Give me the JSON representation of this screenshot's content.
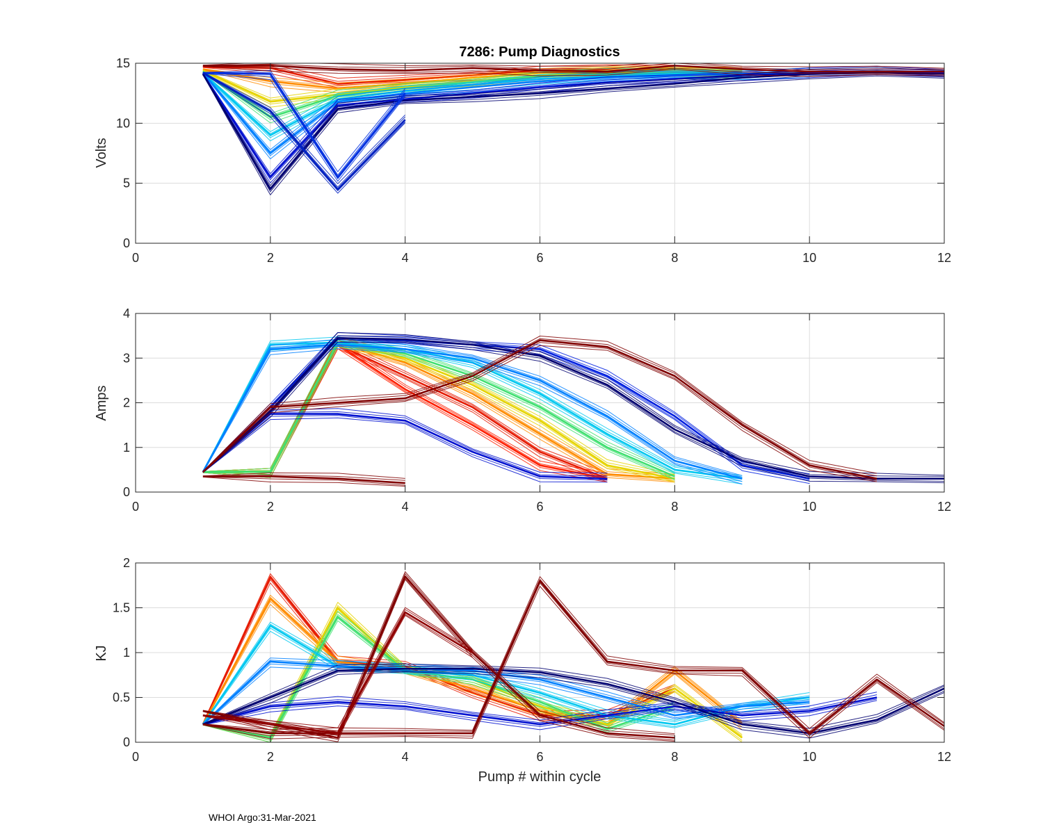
{
  "footer": "WHOI Argo:31-Mar-2021",
  "chart_data": [
    {
      "type": "line",
      "title": "7286: Pump Diagnostics",
      "xlabel": "",
      "ylabel": "Volts",
      "xlim": [
        0,
        12
      ],
      "ylim": [
        0,
        15
      ],
      "xticks": [
        0,
        2,
        4,
        6,
        8,
        10,
        12
      ],
      "yticks": [
        0,
        5,
        10,
        15
      ],
      "grid": true,
      "colormap": "jet, cycle-ordered: dark red (earliest) to dark blue (latest)",
      "series": [
        {
          "name": "early cycles",
          "color": "#e61a00",
          "x": [
            1,
            2,
            3,
            4,
            5,
            6,
            7,
            8
          ],
          "y": [
            14.7,
            14.6,
            13.3,
            13.6,
            14.0,
            14.4,
            14.4,
            14.5
          ]
        },
        {
          "name": "orange cycles",
          "color": "#ff8c00",
          "x": [
            1,
            2,
            3,
            4,
            5,
            6,
            7,
            8,
            9
          ],
          "y": [
            14.5,
            13.5,
            12.9,
            13.3,
            13.8,
            14.2,
            14.3,
            14.4,
            14.4
          ]
        },
        {
          "name": "yellow cycles",
          "color": "#e6d400",
          "x": [
            1,
            2,
            3,
            4,
            5,
            6,
            7,
            8,
            9
          ],
          "y": [
            14.4,
            11.8,
            12.4,
            13.0,
            13.5,
            14.0,
            14.2,
            14.3,
            14.3
          ]
        },
        {
          "name": "green cycles",
          "color": "#40e070",
          "x": [
            1,
            2,
            3,
            4,
            5,
            6,
            7,
            8,
            9
          ],
          "y": [
            14.3,
            10.5,
            12.3,
            12.9,
            13.4,
            13.9,
            14.1,
            14.2,
            14.2
          ]
        },
        {
          "name": "cyan cycles",
          "color": "#00c8f0",
          "x": [
            1,
            2,
            3,
            4,
            5,
            6,
            7,
            8,
            9,
            10
          ],
          "y": [
            14.2,
            9.0,
            12.0,
            12.7,
            13.2,
            13.7,
            13.9,
            14.1,
            14.1,
            14.2
          ]
        },
        {
          "name": "light blue cycles",
          "color": "#0080ff",
          "x": [
            1,
            2,
            3,
            4,
            5,
            6,
            7,
            8,
            9,
            10
          ],
          "y": [
            14.2,
            7.5,
            11.8,
            12.5,
            13.0,
            13.5,
            13.8,
            14.0,
            14.1,
            14.2
          ]
        },
        {
          "name": "blue cycles",
          "color": "#0010d0",
          "x": [
            1,
            2,
            3,
            4,
            5,
            6,
            7,
            8,
            9,
            10,
            11,
            12
          ],
          "y": [
            14.1,
            5.5,
            11.5,
            12.0,
            12.5,
            13.0,
            13.4,
            13.7,
            14.0,
            14.2,
            14.3,
            14.2
          ]
        },
        {
          "name": "navy cycles (latest)",
          "color": "#000070",
          "x": [
            1,
            2,
            3,
            4,
            5,
            6,
            7,
            8,
            9,
            10,
            11,
            12
          ],
          "y": [
            14.1,
            4.5,
            11.2,
            11.9,
            12.2,
            12.5,
            12.9,
            13.3,
            13.8,
            14.1,
            14.2,
            14.1
          ]
        },
        {
          "name": "dip at pump 3",
          "color": "#0030e0",
          "x": [
            1,
            2,
            3,
            4
          ],
          "y": [
            14.2,
            14.1,
            5.5,
            12.5
          ]
        },
        {
          "name": "dip at pump 3 (deep)",
          "color": "#0020c0",
          "x": [
            1,
            2,
            3,
            4
          ],
          "y": [
            14.2,
            11.0,
            4.5,
            10.3
          ]
        },
        {
          "name": "dark red outlier",
          "color": "#800000",
          "x": [
            1,
            2,
            3,
            4,
            5,
            6,
            7,
            8,
            9,
            10,
            11,
            12
          ],
          "y": [
            14.8,
            14.8,
            14.5,
            14.4,
            14.6,
            14.4,
            14.3,
            14.8,
            14.5,
            14.3,
            14.3,
            14.3
          ]
        }
      ]
    },
    {
      "type": "line",
      "title": "",
      "xlabel": "",
      "ylabel": "Amps",
      "xlim": [
        0,
        12
      ],
      "ylim": [
        0,
        4
      ],
      "xticks": [
        0,
        2,
        4,
        6,
        8,
        10,
        12
      ],
      "yticks": [
        0,
        1,
        2,
        3,
        4
      ],
      "grid": true,
      "series": [
        {
          "name": "red cycles",
          "color": "#e61a00",
          "x": [
            1,
            2,
            3,
            4,
            5,
            6,
            7
          ],
          "y": [
            0.45,
            0.45,
            3.3,
            2.6,
            1.9,
            0.9,
            0.3
          ]
        },
        {
          "name": "red cycles (steep)",
          "color": "#ff2000",
          "x": [
            1,
            2,
            3,
            4,
            5,
            6,
            7
          ],
          "y": [
            0.45,
            0.45,
            3.3,
            2.3,
            1.5,
            0.6,
            0.3
          ]
        },
        {
          "name": "orange cycles",
          "color": "#ff8c00",
          "x": [
            1,
            2,
            3,
            4,
            5,
            6,
            7,
            8
          ],
          "y": [
            0.45,
            0.45,
            3.35,
            2.9,
            2.2,
            1.3,
            0.4,
            0.3
          ]
        },
        {
          "name": "yellow cycles",
          "color": "#e6d400",
          "x": [
            1,
            2,
            3,
            4,
            5,
            6,
            7,
            8
          ],
          "y": [
            0.45,
            0.45,
            3.35,
            3.0,
            2.4,
            1.6,
            0.6,
            0.3
          ]
        },
        {
          "name": "green cycles",
          "color": "#40e070",
          "x": [
            1,
            2,
            3,
            4,
            5,
            6,
            7,
            8
          ],
          "y": [
            0.45,
            0.45,
            3.35,
            3.1,
            2.6,
            1.9,
            1.0,
            0.35
          ]
        },
        {
          "name": "cyan cycles",
          "color": "#00c8f0",
          "x": [
            1,
            2,
            3,
            4,
            5,
            6,
            7,
            8,
            9
          ],
          "y": [
            0.45,
            3.3,
            3.35,
            3.2,
            2.9,
            2.2,
            1.3,
            0.5,
            0.3
          ]
        },
        {
          "name": "light blue cycles",
          "color": "#0080ff",
          "x": [
            1,
            2,
            3,
            4,
            5,
            6,
            7,
            8,
            9
          ],
          "y": [
            0.45,
            3.2,
            3.3,
            3.2,
            3.0,
            2.5,
            1.7,
            0.7,
            0.3
          ]
        },
        {
          "name": "blue plateau cycles",
          "color": "#0010d0",
          "x": [
            1,
            2,
            3,
            4,
            5,
            6,
            7
          ],
          "y": [
            0.45,
            1.75,
            1.75,
            1.6,
            0.9,
            0.35,
            0.3
          ]
        },
        {
          "name": "blue long cycles",
          "color": "#0020e0",
          "x": [
            1,
            2,
            3,
            4,
            5,
            6,
            7,
            8,
            9,
            10
          ],
          "y": [
            0.45,
            1.9,
            3.45,
            3.4,
            3.3,
            3.2,
            2.6,
            1.7,
            0.6,
            0.3
          ]
        },
        {
          "name": "navy cycles (latest)",
          "color": "#000070",
          "x": [
            1,
            2,
            3,
            4,
            5,
            6,
            7,
            8,
            9,
            10,
            11,
            12
          ],
          "y": [
            0.45,
            1.8,
            3.45,
            3.42,
            3.3,
            3.05,
            2.4,
            1.4,
            0.7,
            0.35,
            0.3,
            0.3
          ]
        },
        {
          "name": "dark red outlier A",
          "color": "#800000",
          "x": [
            1,
            2,
            3,
            4
          ],
          "y": [
            0.35,
            0.35,
            0.3,
            0.2
          ]
        },
        {
          "name": "dark red outlier B",
          "color": "#800000",
          "x": [
            1,
            2,
            3,
            4,
            5,
            6,
            7,
            8,
            9,
            10,
            11
          ],
          "y": [
            0.45,
            1.9,
            2.0,
            2.1,
            2.6,
            3.4,
            3.25,
            2.6,
            1.5,
            0.6,
            0.3
          ]
        }
      ]
    },
    {
      "type": "line",
      "title": "",
      "xlabel": "Pump # within cycle",
      "ylabel": "KJ",
      "xlim": [
        0,
        12
      ],
      "ylim": [
        0,
        2
      ],
      "xticks": [
        0,
        2,
        4,
        6,
        8,
        10,
        12
      ],
      "yticks": [
        0,
        0.5,
        1,
        1.5,
        2
      ],
      "yticklabels": [
        "0",
        "0.5",
        "1",
        "1.5",
        "2"
      ],
      "grid": true,
      "series": [
        {
          "name": "red cycles",
          "color": "#e61a00",
          "x": [
            1,
            2,
            3,
            4,
            5,
            6,
            7,
            8
          ],
          "y": [
            0.2,
            1.84,
            0.9,
            0.85,
            0.55,
            0.3,
            0.3,
            0.6
          ]
        },
        {
          "name": "orange cycles",
          "color": "#ff8c00",
          "x": [
            1,
            2,
            3,
            4,
            5,
            6,
            7,
            8,
            9
          ],
          "y": [
            0.2,
            1.6,
            0.9,
            0.8,
            0.6,
            0.35,
            0.2,
            0.8,
            0.2
          ]
        },
        {
          "name": "yellow cycles",
          "color": "#e6d400",
          "x": [
            1,
            2,
            3,
            4,
            5,
            6,
            7,
            8,
            9
          ],
          "y": [
            0.2,
            0.05,
            1.5,
            0.8,
            0.7,
            0.4,
            0.2,
            0.6,
            0.05
          ]
        },
        {
          "name": "green cycles",
          "color": "#40e070",
          "x": [
            1,
            2,
            3,
            4,
            5,
            6,
            7,
            8
          ],
          "y": [
            0.2,
            0.05,
            1.4,
            0.8,
            0.7,
            0.45,
            0.15,
            0.4
          ]
        },
        {
          "name": "cyan cycles",
          "color": "#00c8f0",
          "x": [
            1,
            2,
            3,
            4,
            5,
            6,
            7,
            8,
            9,
            10
          ],
          "y": [
            0.2,
            1.3,
            0.85,
            0.8,
            0.75,
            0.55,
            0.3,
            0.2,
            0.4,
            0.5
          ]
        },
        {
          "name": "light blue cycles",
          "color": "#0080ff",
          "x": [
            1,
            2,
            3,
            4,
            5,
            6,
            7,
            8,
            9,
            10
          ],
          "y": [
            0.2,
            0.9,
            0.85,
            0.82,
            0.8,
            0.7,
            0.5,
            0.3,
            0.4,
            0.45
          ]
        },
        {
          "name": "blue cycles",
          "color": "#0010d0",
          "x": [
            1,
            2,
            3,
            4,
            5,
            6,
            7,
            8,
            9,
            10,
            11
          ],
          "y": [
            0.2,
            0.4,
            0.45,
            0.4,
            0.3,
            0.2,
            0.3,
            0.4,
            0.3,
            0.35,
            0.5
          ]
        },
        {
          "name": "navy cycles (latest)",
          "color": "#000070",
          "x": [
            1,
            2,
            3,
            4,
            5,
            6,
            7,
            8,
            9,
            10,
            11,
            12
          ],
          "y": [
            0.2,
            0.5,
            0.8,
            0.82,
            0.82,
            0.78,
            0.65,
            0.45,
            0.2,
            0.1,
            0.25,
            0.6
          ]
        },
        {
          "name": "dark red outlier A",
          "color": "#800000",
          "x": [
            1,
            2,
            3,
            4,
            5,
            6,
            7,
            8
          ],
          "y": [
            0.35,
            0.2,
            0.05,
            1.85,
            1.0,
            0.3,
            0.1,
            0.05
          ]
        },
        {
          "name": "dark red outlier B",
          "color": "#800000",
          "x": [
            1,
            2,
            3,
            4,
            5,
            6,
            7,
            8,
            9,
            10,
            11,
            12
          ],
          "y": [
            0.2,
            0.1,
            0.1,
            0.1,
            0.1,
            1.8,
            0.9,
            0.8,
            0.8,
            0.1,
            0.7,
            0.18
          ]
        },
        {
          "name": "dark red outlier C",
          "color": "#900000",
          "x": [
            1,
            2,
            3,
            4,
            5
          ],
          "y": [
            0.3,
            0.2,
            0.1,
            1.45,
            1.0
          ]
        }
      ]
    }
  ]
}
